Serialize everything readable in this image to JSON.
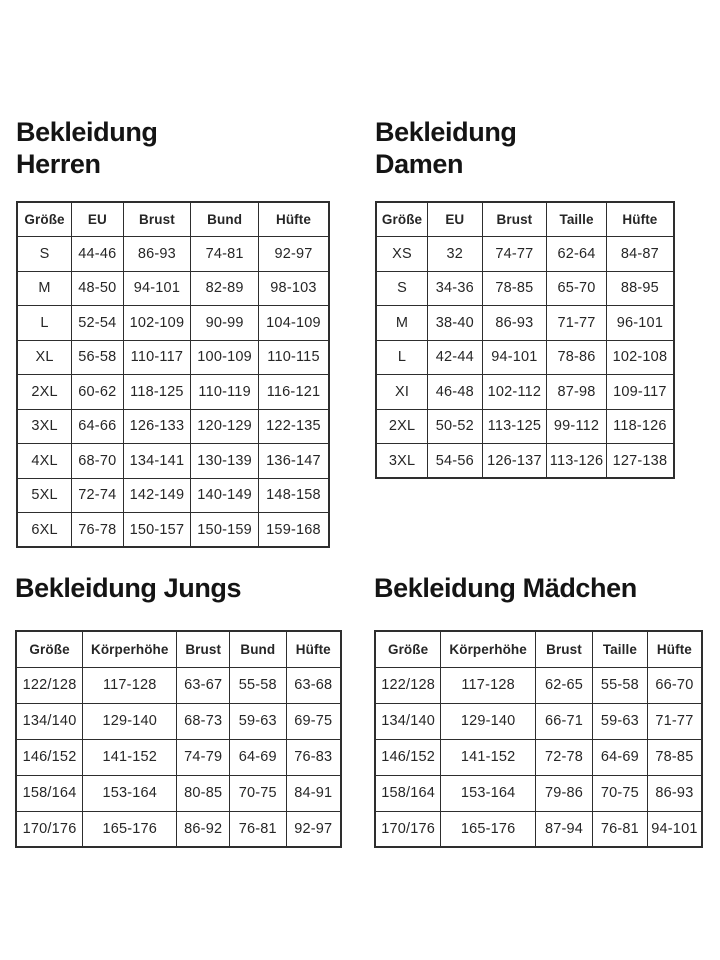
{
  "colors": {
    "background": "#ffffff",
    "title": "#141414",
    "text": "#262626",
    "border": "#2e2e2e"
  },
  "sections": {
    "herren": {
      "title_line1": "Bekleidung",
      "title_line2": "Herren",
      "table": {
        "headers": [
          "Größe",
          "EU",
          "Brust",
          "Bund",
          "Hüfte"
        ],
        "rows": [
          [
            "S",
            "44-46",
            "86-93",
            "74-81",
            "92-97"
          ],
          [
            "M",
            "48-50",
            "94-101",
            "82-89",
            "98-103"
          ],
          [
            "L",
            "52-54",
            "102-109",
            "90-99",
            "104-109"
          ],
          [
            "XL",
            "56-58",
            "110-117",
            "100-109",
            "110-115"
          ],
          [
            "2XL",
            "60-62",
            "118-125",
            "110-119",
            "116-121"
          ],
          [
            "3XL",
            "64-66",
            "126-133",
            "120-129",
            "122-135"
          ],
          [
            "4XL",
            "68-70",
            "134-141",
            "130-139",
            "136-147"
          ],
          [
            "5XL",
            "72-74",
            "142-149",
            "140-149",
            "148-158"
          ],
          [
            "6XL",
            "76-78",
            "150-157",
            "150-159",
            "159-168"
          ]
        ]
      }
    },
    "damen": {
      "title_line1": "Bekleidung",
      "title_line2": "Damen",
      "table": {
        "headers": [
          "Größe",
          "EU",
          "Brust",
          "Taille",
          "Hüfte"
        ],
        "rows": [
          [
            "XS",
            "32",
            "74-77",
            "62-64",
            "84-87"
          ],
          [
            "S",
            "34-36",
            "78-85",
            "65-70",
            "88-95"
          ],
          [
            "M",
            "38-40",
            "86-93",
            "71-77",
            "96-101"
          ],
          [
            "L",
            "42-44",
            "94-101",
            "78-86",
            "102-108"
          ],
          [
            "XI",
            "46-48",
            "102-112",
            "87-98",
            "109-117"
          ],
          [
            "2XL",
            "50-52",
            "113-125",
            "99-112",
            "118-126"
          ],
          [
            "3XL",
            "54-56",
            "126-137",
            "113-126",
            "127-138"
          ]
        ]
      }
    },
    "jungs": {
      "title_line1": "Bekleidung Jungs",
      "title_line2": "",
      "table": {
        "headers": [
          "Größe",
          "Körperhöhe",
          "Brust",
          "Bund",
          "Hüfte"
        ],
        "rows": [
          [
            "122/128",
            "117-128",
            "63-67",
            "55-58",
            "63-68"
          ],
          [
            "134/140",
            "129-140",
            "68-73",
            "59-63",
            "69-75"
          ],
          [
            "146/152",
            "141-152",
            "74-79",
            "64-69",
            "76-83"
          ],
          [
            "158/164",
            "153-164",
            "80-85",
            "70-75",
            "84-91"
          ],
          [
            "170/176",
            "165-176",
            "86-92",
            "76-81",
            "92-97"
          ]
        ]
      }
    },
    "maedchen": {
      "title_line1": "Bekleidung Mädchen",
      "title_line2": "",
      "table": {
        "headers": [
          "Größe",
          "Körperhöhe",
          "Brust",
          "Taille",
          "Hüfte"
        ],
        "rows": [
          [
            "122/128",
            "117-128",
            "62-65",
            "55-58",
            "66-70"
          ],
          [
            "134/140",
            "129-140",
            "66-71",
            "59-63",
            "71-77"
          ],
          [
            "146/152",
            "141-152",
            "72-78",
            "64-69",
            "78-85"
          ],
          [
            "158/164",
            "153-164",
            "79-86",
            "70-75",
            "86-93"
          ],
          [
            "170/176",
            "165-176",
            "87-94",
            "76-81",
            "94-101"
          ]
        ]
      }
    }
  }
}
